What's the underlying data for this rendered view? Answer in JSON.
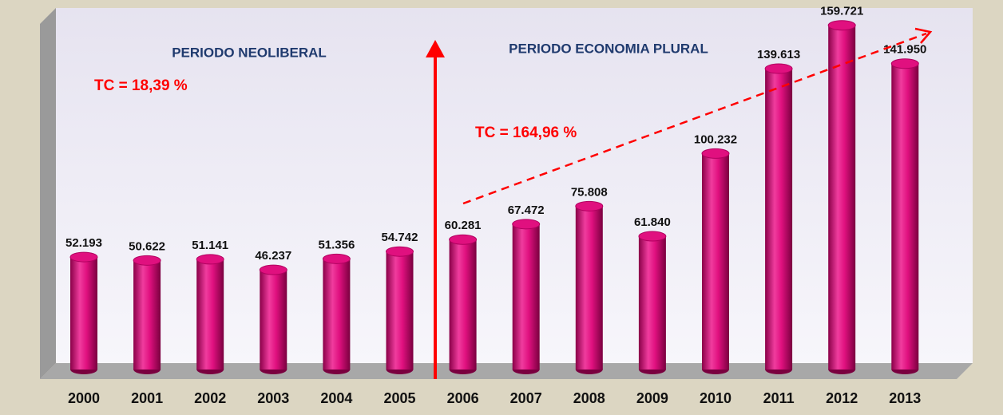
{
  "chart_data": {
    "type": "bar",
    "categories": [
      "2000",
      "2001",
      "2002",
      "2003",
      "2004",
      "2005",
      "2006",
      "2007",
      "2008",
      "2009",
      "2010",
      "2011",
      "2012",
      "2013"
    ],
    "values": [
      52.193,
      50.622,
      51.141,
      46.237,
      51.356,
      54.742,
      60.281,
      67.472,
      75.808,
      61.84,
      100.232,
      139.613,
      159.721,
      141.95
    ],
    "value_labels": [
      "52.193",
      "50.622",
      "51.141",
      "46.237",
      "51.356",
      "54.742",
      "60.281",
      "67.472",
      "75.808",
      "61.840",
      "100.232",
      "139.613",
      "159.721",
      "141.950"
    ],
    "color": "#e0107f",
    "annotations": [
      "PERIODO NEOLIBERAL",
      "PERIODO ECONOMIA PLURAL",
      "TC = 18,39 %",
      "TC = 164,96 %"
    ]
  }
}
